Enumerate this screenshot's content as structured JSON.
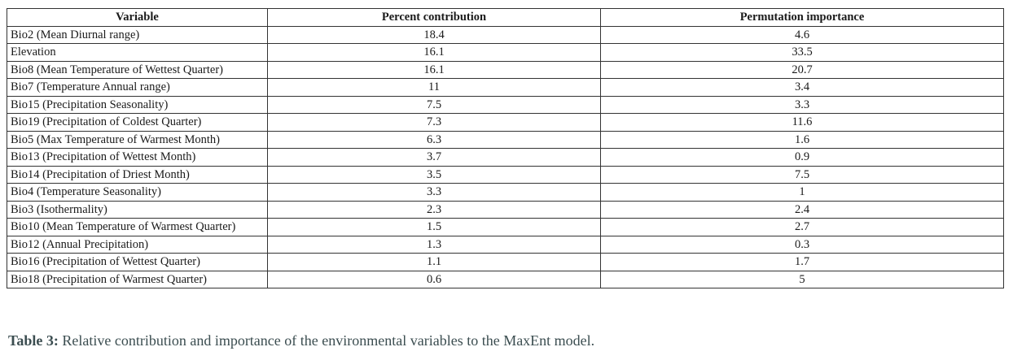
{
  "table": {
    "headers": [
      "Variable",
      "Percent contribution",
      "Permutation importance"
    ],
    "rows": [
      [
        "Bio2 (Mean Diurnal range)",
        "18.4",
        "4.6"
      ],
      [
        "Elevation",
        "16.1",
        "33.5"
      ],
      [
        "Bio8 (Mean Temperature of Wettest Quarter)",
        "16.1",
        "20.7"
      ],
      [
        "Bio7 (Temperature Annual range)",
        "11",
        "3.4"
      ],
      [
        "Bio15 (Precipitation Seasonality)",
        "7.5",
        "3.3"
      ],
      [
        "Bio19 (Precipitation of Coldest Quarter)",
        "7.3",
        "11.6"
      ],
      [
        "Bio5 (Max Temperature of Warmest Month)",
        "6.3",
        "1.6"
      ],
      [
        "Bio13 (Precipitation of Wettest Month)",
        "3.7",
        "0.9"
      ],
      [
        "Bio14 (Precipitation of Driest Month)",
        "3.5",
        "7.5"
      ],
      [
        "Bio4 (Temperature Seasonality)",
        "3.3",
        "1"
      ],
      [
        "Bio3 (Isothermality)",
        "2.3",
        "2.4"
      ],
      [
        "Bio10 (Mean Temperature of Warmest Quarter)",
        "1.5",
        "2.7"
      ],
      [
        "Bio12 (Annual Precipitation)",
        "1.3",
        "0.3"
      ],
      [
        "Bio16 (Precipitation of Wettest Quarter)",
        "1.1",
        "1.7"
      ],
      [
        "Bio18 (Precipitation of Warmest Quarter)",
        "0.6",
        "5"
      ]
    ]
  },
  "caption": {
    "label": "Table 3:",
    "text": " Relative contribution and importance of the environmental variables to the MaxEnt model."
  },
  "chart_data": {
    "type": "table",
    "columns": [
      "Variable",
      "Percent contribution",
      "Permutation importance"
    ],
    "rows": [
      {
        "Variable": "Bio2 (Mean Diurnal range)",
        "Percent contribution": 18.4,
        "Permutation importance": 4.6
      },
      {
        "Variable": "Elevation",
        "Percent contribution": 16.1,
        "Permutation importance": 33.5
      },
      {
        "Variable": "Bio8 (Mean Temperature of Wettest Quarter)",
        "Percent contribution": 16.1,
        "Permutation importance": 20.7
      },
      {
        "Variable": "Bio7 (Temperature Annual range)",
        "Percent contribution": 11,
        "Permutation importance": 3.4
      },
      {
        "Variable": "Bio15 (Precipitation Seasonality)",
        "Percent contribution": 7.5,
        "Permutation importance": 3.3
      },
      {
        "Variable": "Bio19 (Precipitation of Coldest Quarter)",
        "Percent contribution": 7.3,
        "Permutation importance": 11.6
      },
      {
        "Variable": "Bio5 (Max Temperature of Warmest Month)",
        "Percent contribution": 6.3,
        "Permutation importance": 1.6
      },
      {
        "Variable": "Bio13 (Precipitation of Wettest Month)",
        "Percent contribution": 3.7,
        "Permutation importance": 0.9
      },
      {
        "Variable": "Bio14 (Precipitation of Driest Month)",
        "Percent contribution": 3.5,
        "Permutation importance": 7.5
      },
      {
        "Variable": "Bio4 (Temperature Seasonality)",
        "Percent contribution": 3.3,
        "Permutation importance": 1
      },
      {
        "Variable": "Bio3 (Isothermality)",
        "Percent contribution": 2.3,
        "Permutation importance": 2.4
      },
      {
        "Variable": "Bio10 (Mean Temperature of Warmest Quarter)",
        "Percent contribution": 1.5,
        "Permutation importance": 2.7
      },
      {
        "Variable": "Bio12 (Annual Precipitation)",
        "Percent contribution": 1.3,
        "Permutation importance": 0.3
      },
      {
        "Variable": "Bio16 (Precipitation of Wettest Quarter)",
        "Percent contribution": 1.1,
        "Permutation importance": 1.7
      },
      {
        "Variable": "Bio18 (Precipitation of Warmest Quarter)",
        "Percent contribution": 0.6,
        "Permutation importance": 5
      }
    ]
  }
}
